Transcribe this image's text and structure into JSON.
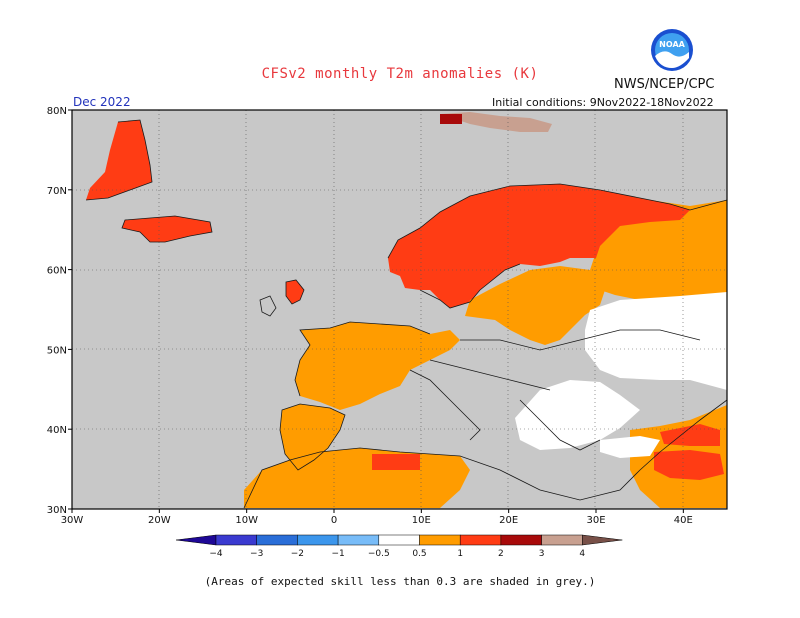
{
  "title": "CFSv2 monthly T2m anomalies (K)",
  "organization": "NWS/NCEP/CPC",
  "logo_text": "NOAA",
  "valid_month": "Dec 2022",
  "initial_conditions": "Initial conditions: 9Nov2022-18Nov2022",
  "footnote": "(Areas of expected skill less than 0.3 are shaded in grey.)",
  "map": {
    "lon_range": [
      -30,
      45
    ],
    "lat_range": [
      30,
      80
    ],
    "lon_labels": [
      "30W",
      "20W",
      "10W",
      "0",
      "10E",
      "20E",
      "30E",
      "40E"
    ],
    "lat_labels": [
      "30N",
      "40N",
      "50N",
      "60N",
      "70N",
      "80N"
    ],
    "low_skill_color": "#c8c8c8"
  },
  "legend": {
    "tick_labels": [
      "−4",
      "−3",
      "−2",
      "−1",
      "−0.5",
      "0.5",
      "1",
      "2",
      "3",
      "4"
    ],
    "colors": [
      "#1e0896",
      "#3a3ad0",
      "#2a6ed8",
      "#3c96ec",
      "#78bcf8",
      "#ffffff",
      "#ff9c00",
      "#ff3c14",
      "#a80a0a",
      "#c8a090",
      "#785048"
    ]
  }
}
